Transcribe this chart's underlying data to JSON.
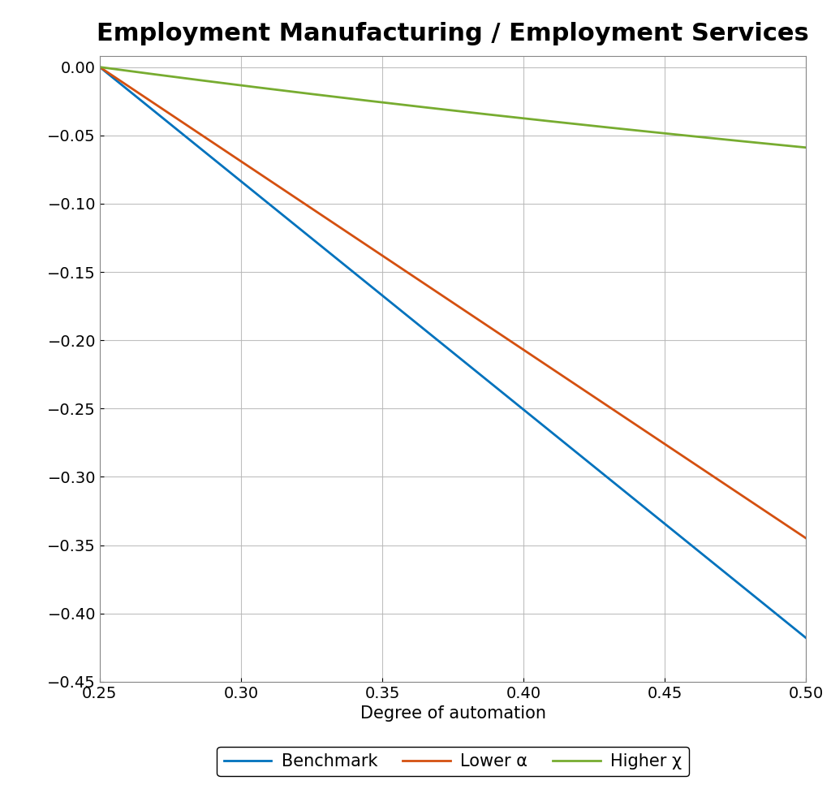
{
  "title": "Employment Manufacturing / Employment Services",
  "xlabel": "Degree of automation",
  "ylabel": "",
  "xlim": [
    0.25,
    0.5
  ],
  "ylim": [
    -0.45,
    0.008
  ],
  "x_ticks": [
    0.25,
    0.3,
    0.35,
    0.4,
    0.45,
    0.5
  ],
  "y_ticks": [
    0,
    -0.05,
    -0.1,
    -0.15,
    -0.2,
    -0.25,
    -0.3,
    -0.35,
    -0.4,
    -0.45
  ],
  "benchmark_slope": -1.672,
  "lower_alpha_slope": -1.38,
  "higher_chi_a": -0.185,
  "higher_chi_b": 1.5,
  "color_benchmark": "#0072bd",
  "color_lower_alpha": "#d45010",
  "color_higher_chi": "#77ac30",
  "linewidth": 2.0,
  "legend_labels": [
    "Benchmark",
    "Lower α",
    "Higher χ"
  ],
  "background_color": "#ffffff",
  "grid_color": "#b8b8b8",
  "title_fontsize": 22,
  "label_fontsize": 15,
  "tick_fontsize": 14,
  "legend_fontsize": 15
}
